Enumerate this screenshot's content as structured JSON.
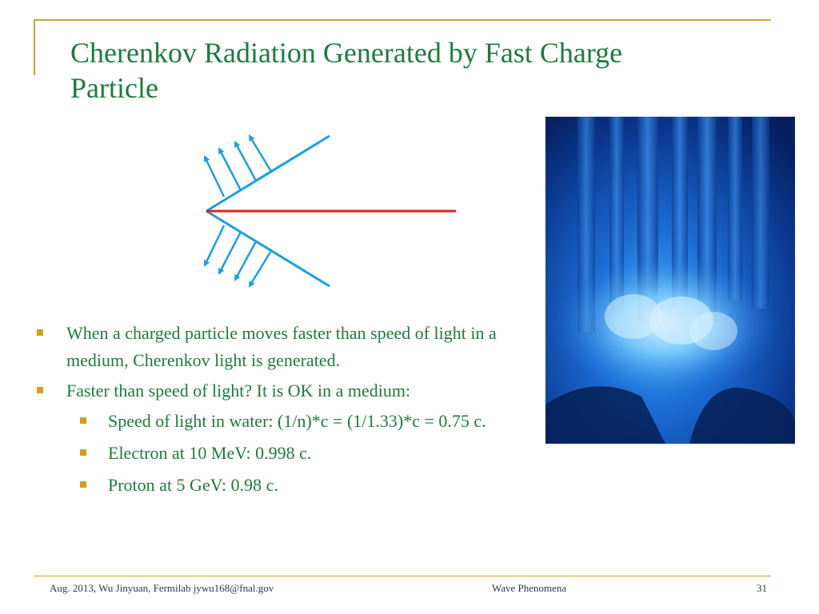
{
  "slide": {
    "title": "Cherenkov Radiation Generated by Fast Charge Particle",
    "bullets": [
      "When a charged particle moves faster than speed of light in a medium, Cherenkov light is generated.",
      "Faster than speed of light? It is OK in a medium:"
    ],
    "sub_bullets": [
      "Speed of light in water: (1/n)*c = (1/1.33)*c = 0.75 c.",
      "Electron at 10 MeV: 0.998 c.",
      "Proton at 5 GeV: 0.98 c."
    ]
  },
  "footer": {
    "left": "Aug. 2013, Wu Jinyuan, Fermilab jywu168@fnal.gov",
    "center": "Wave Phenomena",
    "page": "31"
  },
  "colors": {
    "title": "#1e7a3c",
    "accent_frame": "#c9a23a",
    "bullet_marker": "#d4a017",
    "particle_track": "#e02020",
    "wavefront": "#1aa0e0",
    "footer_text": "#1a3a5c"
  },
  "images": {
    "reactor_photo": "reactor-core-cherenkov-glow-photo"
  }
}
